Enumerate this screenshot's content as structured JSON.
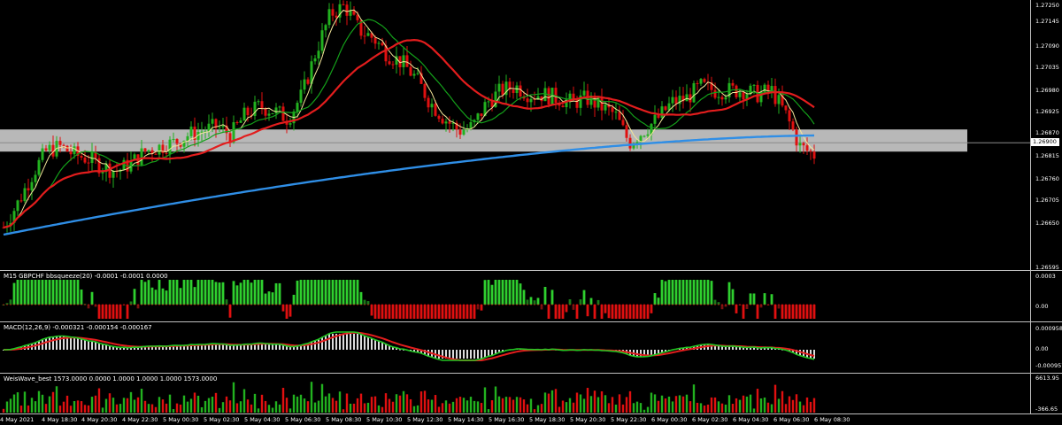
{
  "colors": {
    "background": "#000000",
    "bull_candle": "#22b11f",
    "bear_candle": "#e01010",
    "ma_fast": "#f5e79a",
    "ma_mid": "#14a01a",
    "ma_slow": "#e21d1d",
    "ma_long": "#2f8ee6",
    "zone": "#d8d8d8",
    "macd_main": "#dcdcdc",
    "macd_signal": "#e21d1d",
    "macd_line": "#22c422"
  },
  "main_pane": {
    "current_price": "1.26900",
    "price_ticks": [
      "1.27250",
      "1.27145",
      "1.27090",
      "1.27035",
      "1.26980",
      "1.26925",
      "1.26870",
      "1.26815",
      "1.26760",
      "1.26705",
      "1.26650",
      "1.26595"
    ]
  },
  "squeeze_pane": {
    "label": "M15 GBPCHF bbsqueeze(20) -0.0001 -0.0001 0.0000",
    "ticks": [
      "0.0003",
      "0.00"
    ]
  },
  "macd_pane": {
    "label": "MACD(12,26,9) -0.000321 -0.000154 -0.000167",
    "ticks": [
      "0.000958",
      "0.00",
      "-0.000957"
    ]
  },
  "weis_pane": {
    "label": "WeisWave_best 1573.0000 0.0000 1.0000 1.0000 1.0000 1573.0000",
    "ticks": [
      "6613.95",
      "-366.65"
    ]
  },
  "time_labels": [
    "4 May 2021",
    "4 May 18:30",
    "4 May 20:30",
    "4 May 22:30",
    "5 May 00:30",
    "5 May 02:30",
    "5 May 04:30",
    "5 May 06:30",
    "5 May 08:30",
    "5 May 10:30",
    "5 May 12:30",
    "5 May 14:30",
    "5 May 16:30",
    "5 May 18:30",
    "5 May 20:30",
    "5 May 22:30",
    "6 May 00:30",
    "6 May 02:30",
    "6 May 04:30",
    "6 May 06:30",
    "6 May 08:30"
  ],
  "chart_data": {
    "type": "candlestick",
    "symbol_timeframe": "M15 GBPCHF",
    "x_range": [
      "4 May 2021",
      "6 May 08:30"
    ],
    "ylim": [
      1.26595,
      1.2725
    ],
    "current_price": 1.269,
    "close_approx": [
      1.2669,
      1.2675,
      1.2682,
      1.2688,
      1.2689,
      1.2687,
      1.2686,
      1.2684,
      1.2683,
      1.2685,
      1.2688,
      1.2689,
      1.269,
      1.2692,
      1.2693,
      1.2694,
      1.2692,
      1.2697,
      1.2699,
      1.2698,
      1.2696,
      1.2702,
      1.2713,
      1.2722,
      1.2724,
      1.2718,
      1.2716,
      1.2712,
      1.271,
      1.2706,
      1.27,
      1.2696,
      1.2693,
      1.2694,
      1.27,
      1.2703,
      1.2704,
      1.2702,
      1.2702,
      1.2701,
      1.27,
      1.2701,
      1.2699,
      1.2697,
      1.269,
      1.2693,
      1.2696,
      1.27,
      1.2701,
      1.2704,
      1.2703,
      1.2703,
      1.2703,
      1.2702,
      1.2703,
      1.2697,
      1.2689,
      1.2687
    ]
  }
}
